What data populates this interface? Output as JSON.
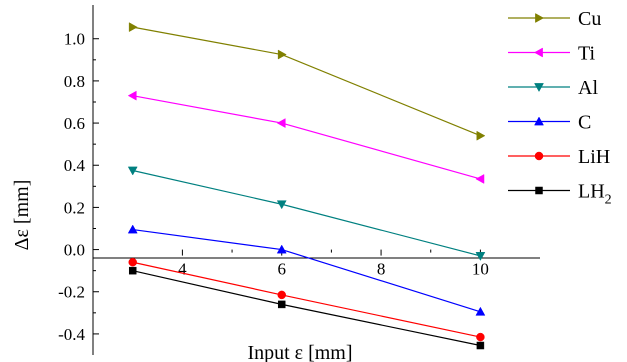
{
  "chart_data": {
    "type": "line",
    "xlabel": "Input ε [mm]",
    "ylabel": "Δε [mm]",
    "xlim": [
      2.2,
      11.2
    ],
    "ylim": [
      -0.5,
      1.16
    ],
    "xticks": [
      4,
      6,
      8,
      10
    ],
    "xtick_labels": [
      "4",
      "6",
      "8",
      "10"
    ],
    "yticks": [
      -0.4,
      -0.2,
      0.0,
      0.2,
      0.4,
      0.6,
      0.8,
      1.0
    ],
    "ytick_labels": [
      "-0.4",
      "-0.2",
      "0.0",
      "0.2",
      "0.4",
      "0.6",
      "0.8",
      "1.0"
    ],
    "legend_position": "top-right",
    "x": [
      3,
      6,
      10
    ],
    "series": [
      {
        "name": "Cu",
        "label_main": "Cu",
        "label_sub": "",
        "color": "#808000",
        "marker": "triangle-right",
        "values": [
          1.055,
          0.925,
          0.54
        ]
      },
      {
        "name": "Ti",
        "label_main": "Ti",
        "label_sub": "",
        "color": "#ff00ff",
        "marker": "triangle-left",
        "values": [
          0.73,
          0.6,
          0.335
        ]
      },
      {
        "name": "Al",
        "label_main": "Al",
        "label_sub": "",
        "color": "#008080",
        "marker": "triangle-down",
        "values": [
          0.375,
          0.215,
          -0.03
        ]
      },
      {
        "name": "C",
        "label_main": "C",
        "label_sub": "",
        "color": "#0000ff",
        "marker": "triangle-up",
        "values": [
          0.095,
          0.0,
          -0.295
        ]
      },
      {
        "name": "LiH",
        "label_main": "LiH",
        "label_sub": "",
        "color": "#ff0000",
        "marker": "circle",
        "values": [
          -0.06,
          -0.215,
          -0.415
        ]
      },
      {
        "name": "LH2",
        "label_main": "LH",
        "label_sub": "2",
        "color": "#000000",
        "marker": "square",
        "values": [
          -0.1,
          -0.26,
          -0.455
        ]
      }
    ]
  }
}
